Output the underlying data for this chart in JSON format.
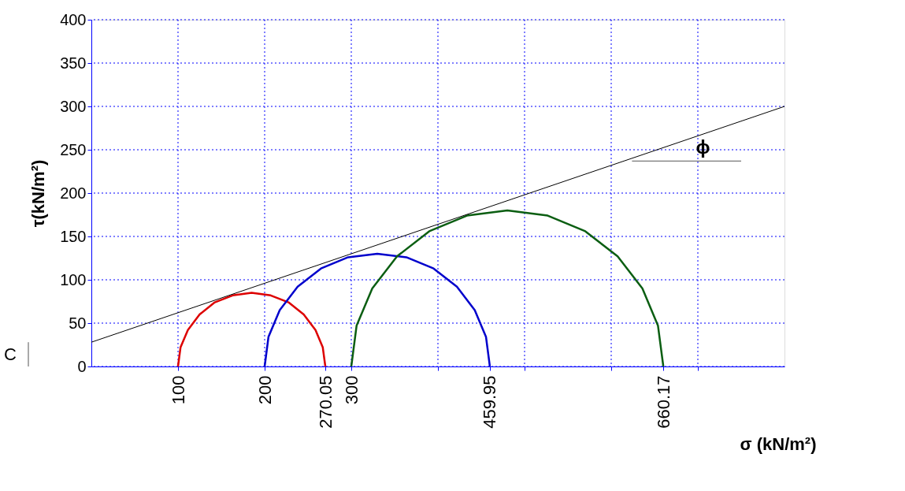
{
  "chart_data": {
    "type": "line",
    "xlabel": "σ (kN/m²)",
    "ylabel": "τ(kN/m²)",
    "xlim": [
      0,
      800
    ],
    "ylim": [
      0,
      400
    ],
    "xticks": [
      {
        "value": 100,
        "label": "100"
      },
      {
        "value": 200,
        "label": "200"
      },
      {
        "value": 270.05,
        "label": "270.05"
      },
      {
        "value": 300,
        "label": "300"
      },
      {
        "value": 400,
        "label": null
      },
      {
        "value": 459.95,
        "label": "459.95"
      },
      {
        "value": 500,
        "label": null
      },
      {
        "value": 600,
        "label": null
      },
      {
        "value": 660.17,
        "label": "660.17"
      },
      {
        "value": 700,
        "label": null
      }
    ],
    "yticks": [
      0,
      50,
      100,
      150,
      200,
      250,
      300,
      350,
      400
    ],
    "grid": true,
    "marker": "none",
    "line_style": "solid",
    "series": [
      {
        "color": "#dd0000",
        "x": [
          270.05,
          267.1,
          258.7,
          245.1,
          227.5,
          207.0,
          185.0,
          163.0,
          142.5,
          124.9,
          111.4,
          102.9,
          100
        ],
        "values": [
          0,
          22,
          42,
          60,
          74,
          82,
          85,
          82,
          74,
          60,
          42,
          22,
          0
        ]
      },
      {
        "color": "#0000cc",
        "x": [
          459.95,
          455.5,
          442.5,
          421.9,
          395.0,
          363.6,
          330.0,
          296.3,
          265.0,
          238.1,
          217.4,
          204.4,
          200
        ],
        "values": [
          0,
          34,
          65,
          92,
          113,
          126,
          130,
          126,
          113,
          92,
          65,
          34,
          0
        ]
      },
      {
        "color": "#0b5e12",
        "x": [
          660.17,
          654.0,
          636.0,
          607.4,
          570.1,
          526.7,
          480.1,
          433.5,
          390.0,
          352.8,
          324.2,
          306.1,
          300
        ],
        "values": [
          0,
          47,
          90,
          127,
          156,
          174,
          180,
          174,
          156,
          127,
          90,
          47,
          0
        ]
      },
      {
        "color": "#000000",
        "x": [
          0,
          800
        ],
        "values": [
          28,
          300
        ]
      },
      {
        "color": "#555555",
        "x": [
          624,
          750
        ],
        "values": [
          237,
          237
        ]
      }
    ],
    "annotations": [
      "C",
      "ϕ"
    ]
  }
}
